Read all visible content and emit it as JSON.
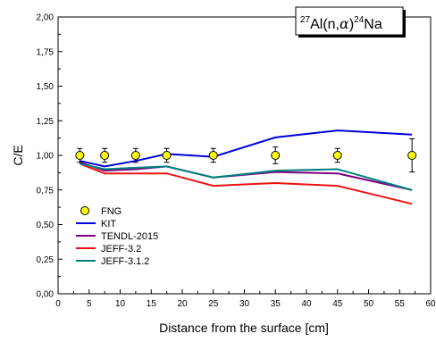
{
  "chart_data": {
    "type": "line",
    "title_parts": {
      "mass": "27",
      "element": "Al(n,",
      "alpha": "α",
      "close": ")",
      "product_mass": "24",
      "product": "Na"
    },
    "xlabel": "Distance from the surface [cm]",
    "ylabel": "C/E",
    "xlim": [
      0,
      60
    ],
    "ylim": [
      0,
      2
    ],
    "xticks": [
      "0",
      "5",
      "10",
      "15",
      "20",
      "25",
      "30",
      "35",
      "40",
      "45",
      "50",
      "55",
      "60"
    ],
    "yticks": [
      "0,00",
      "0,25",
      "0,50",
      "0,75",
      "1,00",
      "1,25",
      "1,50",
      "1,75",
      "2,00"
    ],
    "grid": false,
    "legend_position": "bottom-left",
    "experiment": {
      "name": "FNG",
      "color": "#ffff00",
      "x": [
        3.5,
        7.5,
        12.5,
        17.5,
        25,
        35,
        45,
        57
      ],
      "y": [
        1.0,
        1.0,
        1.0,
        1.0,
        1.0,
        1.0,
        1.0,
        1.0
      ],
      "err": [
        0.05,
        0.05,
        0.05,
        0.05,
        0.05,
        0.06,
        0.05,
        0.12
      ]
    },
    "series": [
      {
        "name": "KIT",
        "color": "#0000dd",
        "x": [
          3.5,
          7.5,
          12.5,
          17.5,
          25,
          35,
          45,
          57
        ],
        "y": [
          0.96,
          0.92,
          0.96,
          1.01,
          0.99,
          1.13,
          1.18,
          1.15
        ]
      },
      {
        "name": "TENDL-2015",
        "color": "#800080",
        "x": [
          3.5,
          7.5,
          12.5,
          17.5,
          25,
          35,
          45,
          57
        ],
        "y": [
          0.95,
          0.89,
          0.9,
          0.92,
          0.84,
          0.88,
          0.87,
          0.75
        ]
      },
      {
        "name": "JEFF-3.2",
        "color": "#ee1111",
        "x": [
          3.5,
          7.5,
          12.5,
          17.5,
          25,
          35,
          45,
          57
        ],
        "y": [
          0.94,
          0.87,
          0.87,
          0.87,
          0.78,
          0.8,
          0.78,
          0.65
        ]
      },
      {
        "name": "JEFF-3.1.2",
        "color": "#008080",
        "x": [
          3.5,
          7.5,
          12.5,
          17.5,
          25,
          35,
          45,
          57
        ],
        "y": [
          0.94,
          0.9,
          0.91,
          0.92,
          0.84,
          0.89,
          0.9,
          0.75
        ]
      }
    ]
  }
}
